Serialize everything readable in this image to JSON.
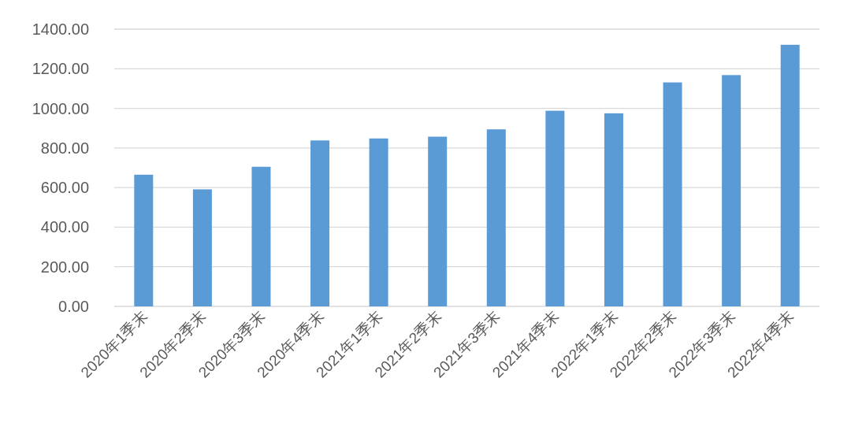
{
  "chart_data": {
    "type": "bar",
    "categories": [
      "2020年1季末",
      "2020年2季末",
      "2020年3季末",
      "2020年4季末",
      "2021年1季末",
      "2021年2季末",
      "2021年3季末",
      "2021年4季末",
      "2022年1季末",
      "2022年2季末",
      "2022年3季末",
      "2022年4季末"
    ],
    "values": [
      665,
      591,
      705,
      838,
      848,
      857,
      894,
      988,
      975,
      1131,
      1168,
      1321
    ],
    "color": "#5b9bd5",
    "ylim": [
      0,
      1400
    ],
    "yticks": [
      {
        "value": 0,
        "label": "0.00"
      },
      {
        "value": 200,
        "label": "200.00"
      },
      {
        "value": 400,
        "label": "400.00"
      },
      {
        "value": 600,
        "label": "600.00"
      },
      {
        "value": 800,
        "label": "800.00"
      },
      {
        "value": 1000,
        "label": "1000.00"
      },
      {
        "value": 1200,
        "label": "1200.00"
      },
      {
        "value": 1400,
        "label": "1400.00"
      }
    ],
    "grid": "y"
  }
}
